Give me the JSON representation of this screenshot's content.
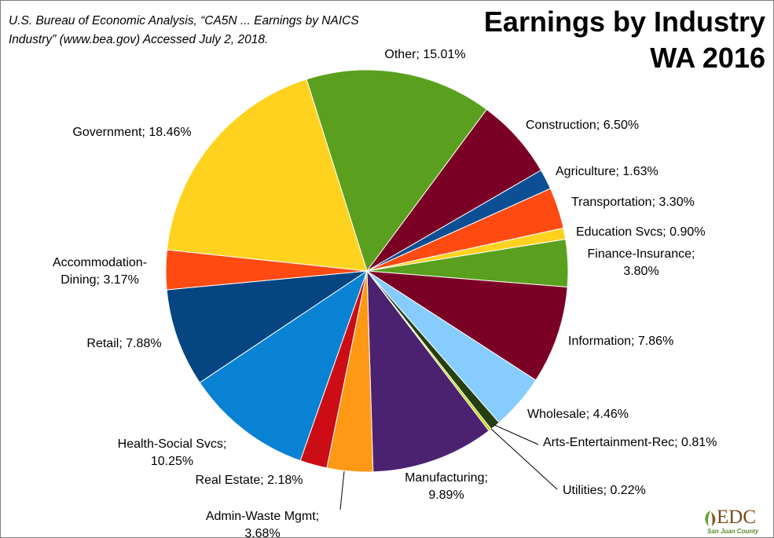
{
  "source_note": "U.S. Bureau of Economic Analysis, “CA5N ... Earnings by NAICS Industry” (www.bea.gov) Accessed July 2, 2018.",
  "logo": {
    "text": "EDC",
    "subtitle": "San Juan County"
  },
  "chart_data": {
    "type": "pie",
    "title_line1": "Earnings by Industry",
    "title_line2": "WA 2016",
    "slices": [
      {
        "label": "Other; 15.01%",
        "value": 15.01,
        "color": "#5aa01e"
      },
      {
        "label": "Construction; 6.50%",
        "value": 6.5,
        "color": "#7b0025"
      },
      {
        "label": "Agriculture; 1.63%",
        "value": 1.63,
        "color": "#0d4f94"
      },
      {
        "label": "Transportation; 3.30%",
        "value": 3.3,
        "color": "#ff4a12"
      },
      {
        "label": "Education Svcs; 0.90%",
        "value": 0.9,
        "color": "#ffd21f"
      },
      {
        "label": "Finance-Insurance; 3.80%",
        "value": 3.8,
        "color": "#5aa01e"
      },
      {
        "label": "Information; 7.86%",
        "value": 7.86,
        "color": "#7b0025"
      },
      {
        "label": "Wholesale; 4.46%",
        "value": 4.46,
        "color": "#87ccff"
      },
      {
        "label": "Arts-Entertainment-Rec; 0.81%",
        "value": 0.81,
        "color": "#263f12"
      },
      {
        "label": "Utilities; 0.22%",
        "value": 0.22,
        "color": "#c3d600"
      },
      {
        "label": "Manufacturing; 9.89%",
        "value": 9.89,
        "color": "#4b2270"
      },
      {
        "label": "Admin-Waste Mgmt; 3.68%",
        "value": 3.68,
        "color": "#ff9814"
      },
      {
        "label": "Real Estate; 2.18%",
        "value": 2.18,
        "color": "#cc0d16"
      },
      {
        "label": "Health-Social Svcs; 10.25%",
        "value": 10.25,
        "color": "#0a82d4"
      },
      {
        "label": "Retail; 7.88%",
        "value": 7.88,
        "color": "#054581"
      },
      {
        "label": "Accommodation-Dining; 3.17%",
        "value": 3.17,
        "color": "#ff4a12"
      },
      {
        "label": "Government; 18.46%",
        "value": 18.46,
        "color": "#ffd21f"
      }
    ]
  }
}
